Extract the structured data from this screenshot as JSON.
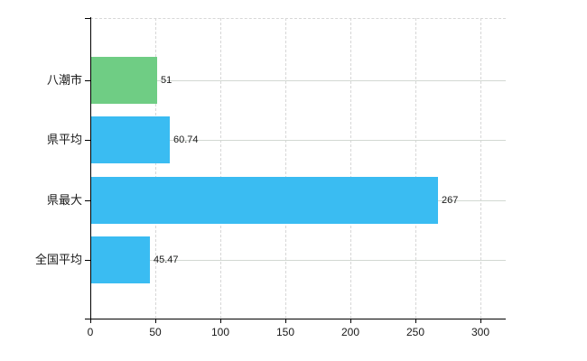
{
  "chart_data": {
    "type": "bar",
    "orientation": "horizontal",
    "title": "",
    "xlabel": "",
    "ylabel": "",
    "categories": [
      "八潮市",
      "県平均",
      "県最大",
      "全国平均"
    ],
    "values": [
      51,
      60.74,
      267,
      45.47
    ],
    "value_labels": [
      "51",
      "60.74",
      "267",
      "45.47"
    ],
    "bar_colors": [
      "#6fcd84",
      "#3abcf2",
      "#3abcf2",
      "#3abcf2"
    ],
    "x_ticks": [
      0,
      50,
      100,
      150,
      200,
      250,
      300
    ],
    "x_tick_labels": [
      "0",
      "50",
      "100",
      "150",
      "200",
      "250",
      "300"
    ],
    "xlim": [
      0,
      320
    ],
    "grid": true,
    "legend_position": "none"
  },
  "colors": {
    "highlight_bar": "#6fcd84",
    "default_bar": "#3abcf2",
    "vertical_grid": "#d7d7d7",
    "horizontal_grid": "#d2d8d2",
    "axis": "#000000",
    "text": "#1a1a1a",
    "background": "#ffffff"
  }
}
